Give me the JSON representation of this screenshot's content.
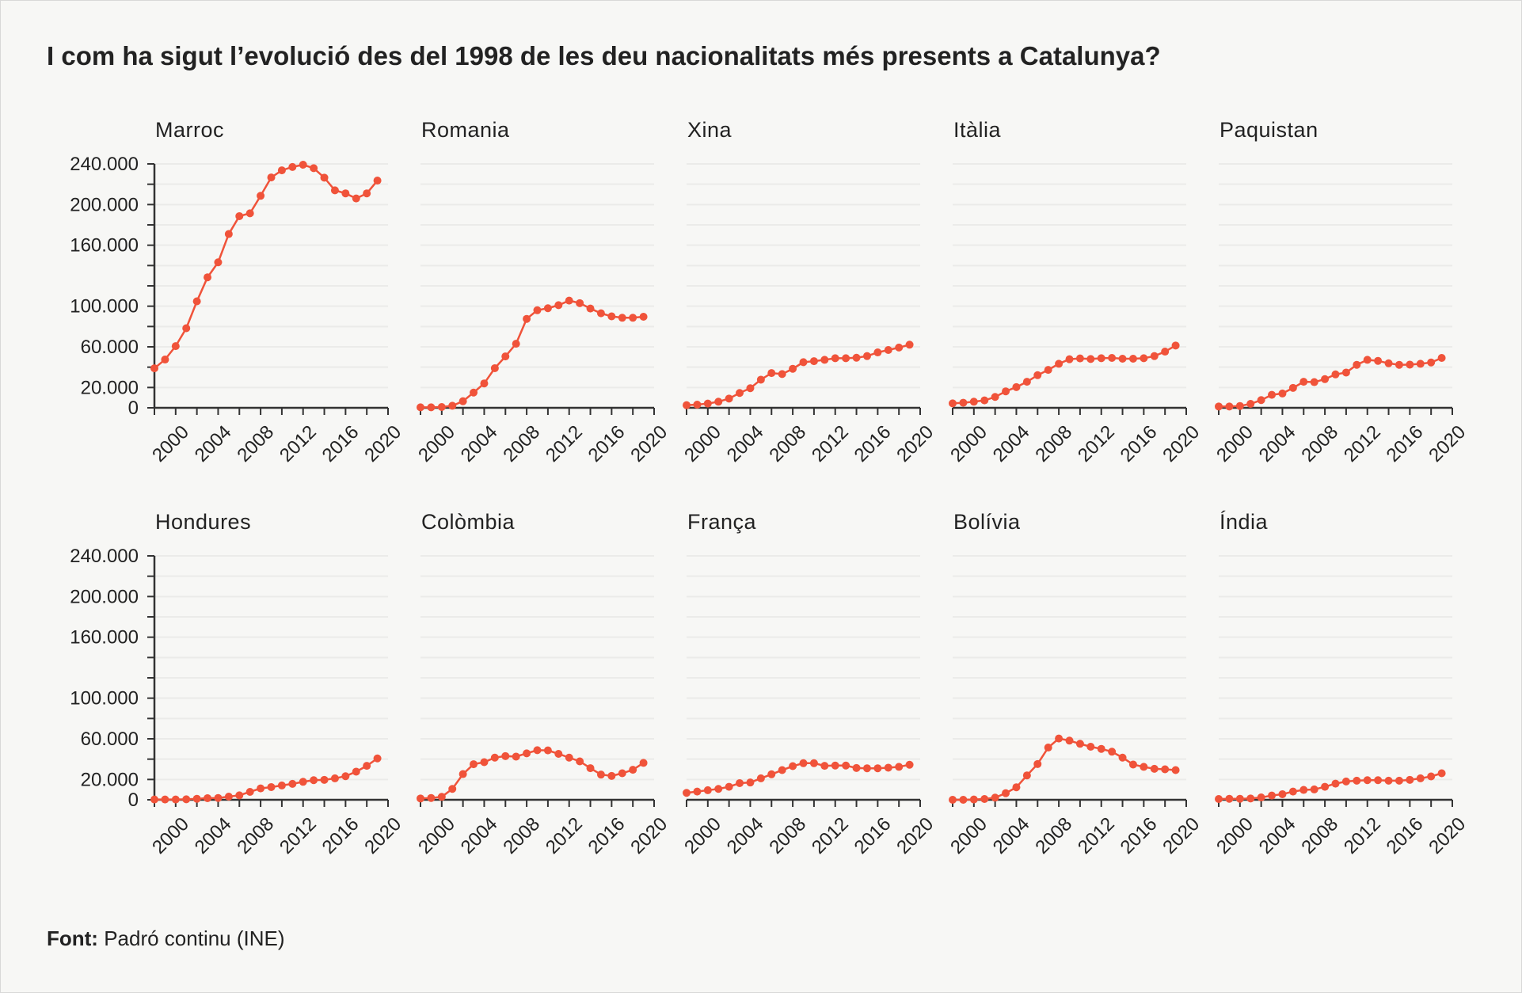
{
  "title": "I com ha sigut l’evolució des del 1998 de les deu nacionalitats més presents a Catalunya?",
  "footer": {
    "label": "Font:",
    "text": "Padró continu (INE)"
  },
  "chart_data": {
    "type": "line",
    "layout": "small-multiples 2x5",
    "line_color": "#f0533a",
    "grid": true,
    "x": [
      1998,
      1999,
      2000,
      2001,
      2002,
      2003,
      2004,
      2005,
      2006,
      2007,
      2008,
      2009,
      2010,
      2011,
      2012,
      2013,
      2014,
      2015,
      2016,
      2017,
      2018,
      2019
    ],
    "xlim": [
      1998,
      2020
    ],
    "x_tick_labels": [
      "2000",
      "2004",
      "2008",
      "2012",
      "2016",
      "2020"
    ],
    "x_ticks": [
      2000,
      2004,
      2008,
      2012,
      2016,
      2020
    ],
    "ylim": [
      0,
      240000
    ],
    "y_grid_step": 20000,
    "y_ticks": [
      0,
      20000,
      60000,
      100000,
      160000,
      200000,
      240000
    ],
    "y_tick_labels": [
      "0",
      "20.000",
      "60.000",
      "100.000",
      "160.000",
      "200.000",
      "240.000"
    ],
    "series": [
      {
        "name": "Marroc",
        "values": [
          38900,
          47500,
          60700,
          78300,
          104800,
          128400,
          143200,
          171000,
          188600,
          191400,
          208600,
          226700,
          233700,
          237000,
          239200,
          235800,
          226500,
          214000,
          211000,
          206000,
          211000,
          223600
        ]
      },
      {
        "name": "Romania",
        "values": [
          500,
          500,
          800,
          2000,
          6500,
          15000,
          24000,
          39000,
          50600,
          63000,
          87500,
          96000,
          98000,
          101000,
          105500,
          103000,
          97700,
          93000,
          90000,
          88600,
          88600,
          89600
        ]
      },
      {
        "name": "Xina",
        "values": [
          2600,
          3100,
          4200,
          6000,
          9100,
          14600,
          19300,
          27700,
          34200,
          33200,
          38400,
          44900,
          45900,
          47200,
          48800,
          48800,
          49300,
          50900,
          54500,
          56900,
          59300,
          62100
        ]
      },
      {
        "name": "Itàlia",
        "values": [
          4400,
          5000,
          6000,
          7300,
          10700,
          16200,
          20400,
          25600,
          32100,
          37300,
          43300,
          47800,
          48600,
          48000,
          48800,
          49100,
          48300,
          48300,
          48800,
          50900,
          55300,
          61300
        ]
      },
      {
        "name": "Paquistan",
        "values": [
          1300,
          1300,
          1800,
          3900,
          7600,
          12800,
          14100,
          19600,
          25600,
          25300,
          28200,
          32900,
          34700,
          42300,
          47200,
          46200,
          43800,
          42300,
          42500,
          43300,
          44600,
          49100
        ]
      },
      {
        "name": "Hondures",
        "values": [
          300,
          300,
          300,
          500,
          1000,
          1600,
          1800,
          3100,
          4400,
          7800,
          11200,
          12500,
          14100,
          15700,
          17700,
          19300,
          19600,
          21100,
          23200,
          27700,
          33400,
          40700
        ]
      },
      {
        "name": "Colòmbia",
        "values": [
          1300,
          1800,
          2900,
          10700,
          25300,
          35000,
          37000,
          41500,
          43000,
          42500,
          45700,
          48800,
          48600,
          45200,
          41500,
          37800,
          31100,
          24800,
          23500,
          26100,
          29500,
          36300
        ]
      },
      {
        "name": "França",
        "values": [
          6800,
          8100,
          9400,
          10700,
          12800,
          16400,
          17000,
          21100,
          25100,
          29200,
          33100,
          36000,
          36000,
          33400,
          33700,
          33700,
          31300,
          31000,
          31000,
          31600,
          32400,
          34500
        ]
      },
      {
        "name": "Bolívia",
        "values": [
          0,
          0,
          300,
          800,
          2100,
          6500,
          12300,
          24000,
          35200,
          51400,
          60300,
          58200,
          55100,
          52200,
          50100,
          47300,
          41500,
          34700,
          32400,
          30500,
          30000,
          29200
        ]
      },
      {
        "name": "Índia",
        "values": [
          800,
          1000,
          1000,
          1300,
          2300,
          4200,
          5500,
          8100,
          9700,
          10200,
          12800,
          15900,
          18000,
          18800,
          19300,
          19300,
          18800,
          18800,
          19600,
          21100,
          23000,
          26100
        ]
      }
    ]
  }
}
